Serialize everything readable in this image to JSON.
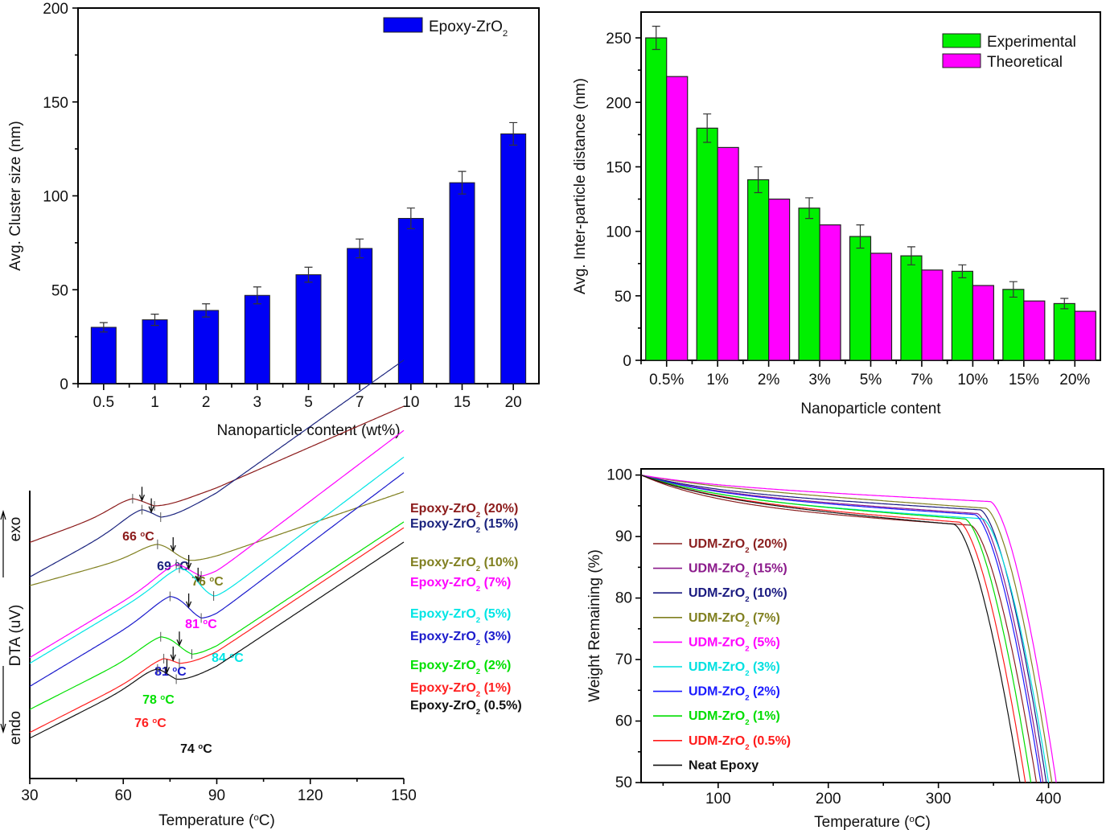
{
  "chart_data": [
    {
      "id": "cluster",
      "type": "bar",
      "title": "",
      "xlabel": "Nanoparticle content (wt%)",
      "ylabel": "Avg. Cluster size (nm)",
      "categories": [
        "0.5",
        "1",
        "2",
        "3",
        "5",
        "7",
        "10",
        "15",
        "20"
      ],
      "series": [
        {
          "name": "Epoxy-ZrO2",
          "legend_main": "Epoxy-ZrO",
          "legend_sub": "2",
          "color": "#0000f5",
          "values": [
            30,
            34,
            39,
            47,
            58,
            72,
            88,
            107,
            133
          ],
          "errors": [
            2.5,
            3,
            3.5,
            4.5,
            4,
            5,
            5.5,
            6,
            6
          ]
        }
      ],
      "ylim": [
        0,
        200
      ],
      "yticks": [
        0,
        50,
        100,
        150,
        200
      ],
      "legend_position": "top-right",
      "grid": false
    },
    {
      "id": "distance",
      "type": "bar",
      "title": "",
      "xlabel": "Nanoparticle content",
      "ylabel": "Avg. Inter-particle distance (nm)",
      "categories": [
        "0.5%",
        "1%",
        "2%",
        "3%",
        "5%",
        "7%",
        "10%",
        "15%",
        "20%"
      ],
      "series": [
        {
          "name": "Experimental",
          "color": "#00f000",
          "values": [
            250,
            180,
            140,
            118,
            96,
            81,
            69,
            55,
            44
          ],
          "errors": [
            9,
            11,
            10,
            8,
            9,
            7,
            5,
            6,
            4
          ]
        },
        {
          "name": "Theoretical",
          "color": "#ff00ff",
          "values": [
            220,
            165,
            125,
            105,
            83,
            70,
            58,
            46,
            38
          ],
          "errors": null
        }
      ],
      "ylim": [
        0,
        270
      ],
      "yticks": [
        0,
        50,
        100,
        150,
        200,
        250
      ],
      "legend_position": "top-right",
      "grid": false
    },
    {
      "id": "dta",
      "type": "line",
      "title": "",
      "xlabel": "Temperature (°C)",
      "xlabel_main": "Temperature (",
      "xlabel_sup": "o",
      "xlabel_end": "C)",
      "ylabel": "DTA (uV)",
      "exo_label": "exo",
      "endo_label": "endo",
      "xlim": [
        30,
        150
      ],
      "xticks": [
        30,
        60,
        90,
        120,
        150
      ],
      "y_ticks_shown": false,
      "series": [
        {
          "name": "Epoxy-ZrO2 (20%)",
          "pct": "(20%)",
          "color": "#8b1a1a",
          "tg": 66,
          "tg_label": "66",
          "offset": 8.2,
          "drop": 0.25,
          "slope": 0.04,
          "peak_at": 63,
          "end_at": 70
        },
        {
          "name": "Epoxy-ZrO2 (15%)",
          "pct": "(15%)",
          "color": "#1a237e",
          "tg": 69,
          "tg_label": "69",
          "offset": 7.0,
          "drop": 0.35,
          "slope": 0.06,
          "peak_at": 66,
          "end_at": 72
        },
        {
          "name": "Epoxy-ZrO2 (10%)",
          "pct": "(10%)",
          "color": "#808020",
          "tg": 76,
          "tg_label": "76",
          "offset": 6.7,
          "drop": 0.5,
          "slope": 0.03,
          "peak_at": 71,
          "end_at": 81
        },
        {
          "name": "Epoxy-ZrO2 (7%)",
          "pct": "(7%)",
          "color": "#ff00ff",
          "tg": 81,
          "tg_label": "81",
          "offset": 4.2,
          "drop": 0.45,
          "slope": 0.065,
          "peak_at": 77,
          "end_at": 85
        },
        {
          "name": "Epoxy-ZrO2 (5%)",
          "pct": "(5%)",
          "color": "#00e5e5",
          "tg": 84,
          "tg_label": "84",
          "offset": 4.0,
          "drop": 1.0,
          "slope": 0.065,
          "peak_at": 78,
          "end_at": 89
        },
        {
          "name": "Epoxy-ZrO2 (3%)",
          "pct": "(3%)",
          "color": "#1a1acc",
          "tg": 81,
          "tg_label": "81",
          "offset": 3.2,
          "drop": 0.8,
          "slope": 0.065,
          "peak_at": 75,
          "end_at": 85
        },
        {
          "name": "Epoxy-ZrO2 (2%)",
          "pct": "(2%)",
          "color": "#00e000",
          "tg": 78,
          "tg_label": "78",
          "offset": 2.4,
          "drop": 0.6,
          "slope": 0.055,
          "peak_at": 72,
          "end_at": 82
        },
        {
          "name": "Epoxy-ZrO2 (1%)",
          "pct": "(1%)",
          "color": "#ff2020",
          "tg": 76,
          "tg_label": "76",
          "offset": 1.6,
          "drop": 0.25,
          "slope": 0.055,
          "peak_at": 73,
          "end_at": 78
        },
        {
          "name": "Epoxy-ZrO2 (0.5%)",
          "pct": "(0.5%)",
          "color": "#111111",
          "tg": 74,
          "tg_label": "74",
          "offset": 1.4,
          "drop": 0.5,
          "slope": 0.055,
          "peak_at": 71,
          "end_at": 77
        }
      ],
      "label_prefix": "Epoxy-ZrO",
      "label_sub": "2",
      "unit_sup": "o",
      "unit": "C",
      "legend_position": "right"
    },
    {
      "id": "tga",
      "type": "line",
      "title": "",
      "xlabel": "Temperature (°C)",
      "xlabel_main": "Temperature (",
      "xlabel_sup": "o",
      "xlabel_end": "C)",
      "ylabel": "Weight Remaining (%)",
      "xlim": [
        30,
        450
      ],
      "ylim": [
        50,
        101
      ],
      "xticks": [
        100,
        200,
        300,
        400
      ],
      "yticks": [
        50,
        60,
        70,
        80,
        90,
        100
      ],
      "series": [
        {
          "name": "UDM-ZrO2 (20%)",
          "prefix": "UDM-ZrO",
          "sub": "2",
          "pct": "(20%)",
          "color": "#8b2020",
          "t50": 389,
          "plateau": 92.0,
          "early": 4.8
        },
        {
          "name": "UDM-ZrO2 (15%)",
          "prefix": "UDM-ZrO",
          "sub": "2",
          "pct": "(15%)",
          "color": "#8b1a8b",
          "t50": 395,
          "plateau": 94.0,
          "early": 2.8
        },
        {
          "name": "UDM-ZrO2 (10%)",
          "prefix": "UDM-ZrO",
          "sub": "2",
          "pct": "(10%)",
          "color": "#1a1a80",
          "t50": 398,
          "plateau": 94.6,
          "early": 2.5
        },
        {
          "name": "UDM-ZrO2 (7%)",
          "prefix": "UDM-ZrO",
          "sub": "2",
          "pct": "(7%)",
          "color": "#808020",
          "t50": 403,
          "plateau": 95.0,
          "early": 1.5
        },
        {
          "name": "UDM-ZrO2 (5%)",
          "prefix": "UDM-ZrO",
          "sub": "2",
          "pct": "(5%)",
          "color": "#ff00ff",
          "t50": 407,
          "plateau": 96.0,
          "early": 1.5
        },
        {
          "name": "UDM-ZrO2 (3%)",
          "prefix": "UDM-ZrO",
          "sub": "2",
          "pct": "(3%)",
          "color": "#00e0e0",
          "t50": 400,
          "plateau": 93.2,
          "early": 3.6
        },
        {
          "name": "UDM-ZrO2 (2%)",
          "prefix": "UDM-ZrO",
          "sub": "2",
          "pct": "(2%)",
          "color": "#1a1aff",
          "t50": 393,
          "plateau": 93.8,
          "early": 3.0
        },
        {
          "name": "UDM-ZrO2 (1%)",
          "prefix": "UDM-ZrO",
          "sub": "2",
          "pct": "(1%)",
          "color": "#00dd00",
          "t50": 384,
          "plateau": 93.0,
          "early": 3.4
        },
        {
          "name": "UDM-ZrO2 (0.5%)",
          "prefix": "UDM-ZrO",
          "sub": "2",
          "pct": "(0.5%)",
          "color": "#ff1a1a",
          "t50": 379,
          "plateau": 92.4,
          "early": 3.8
        },
        {
          "name": "Neat Epoxy",
          "prefix": "Neat Epoxy",
          "sub": "",
          "pct": "",
          "color": "#111111",
          "t50": 374,
          "plateau": 92.0,
          "early": 3.8
        }
      ],
      "legend_position": "left"
    }
  ]
}
